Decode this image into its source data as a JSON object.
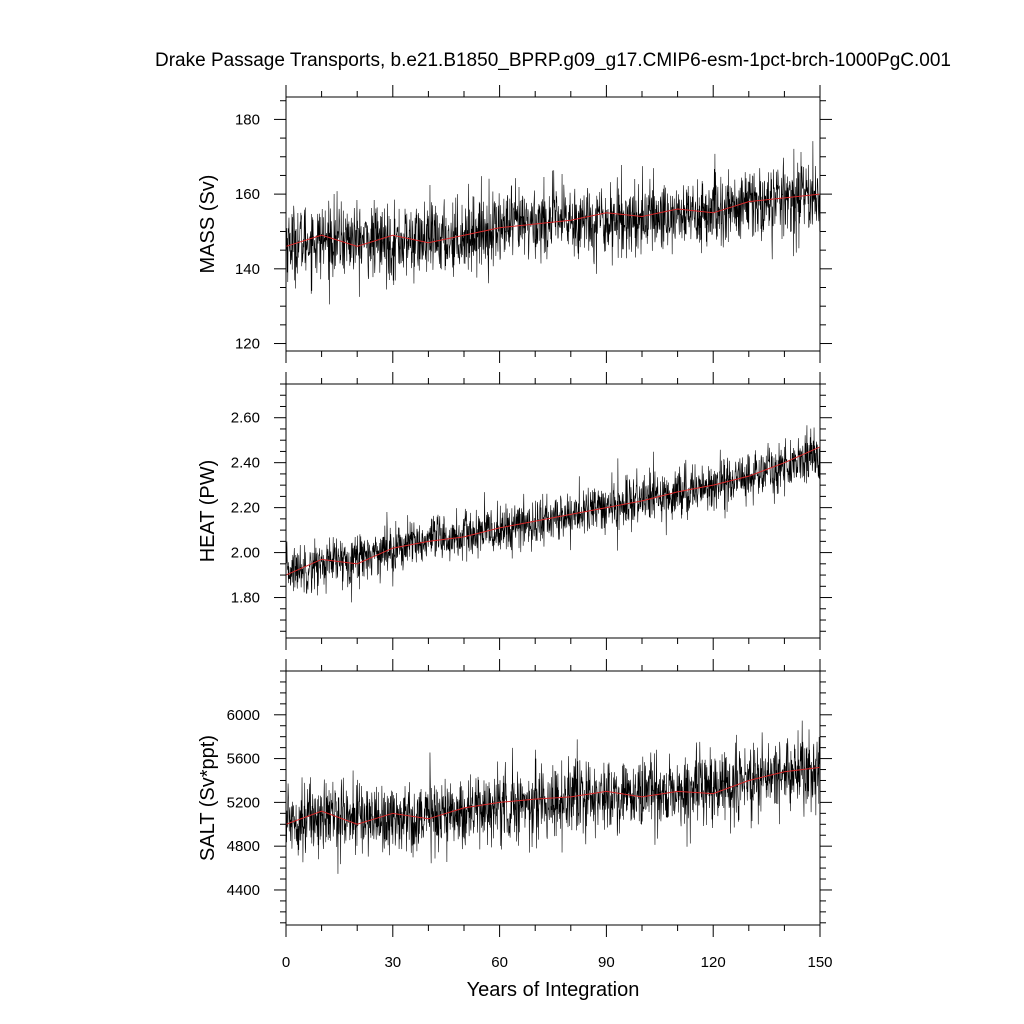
{
  "figure": {
    "title": "Drake Passage Transports, b.e21.B1850_BPRP.g09_g17.CMIP6-esm-1pct-brch-1000PgC.001",
    "xlabel": "Years of Integration"
  },
  "chart_data": [
    {
      "type": "line",
      "ylabel": "MASS (Sv)",
      "xlim": [
        0,
        150
      ],
      "ylim": [
        118,
        186
      ],
      "yticks": [
        120,
        140,
        160,
        180
      ],
      "ytick_labels": [
        "120",
        "140",
        "160",
        "180"
      ],
      "xticks": [
        0,
        30,
        60,
        90,
        120,
        150
      ],
      "colors": {
        "raw": "#000000",
        "smooth": "#d62728"
      },
      "series": [
        {
          "role": "raw",
          "anchors_x": [
            0,
            15,
            30,
            45,
            60,
            75,
            90,
            105,
            120,
            135,
            150
          ],
          "anchors_y": [
            147,
            148,
            147,
            148,
            151,
            153,
            153,
            154,
            155,
            158,
            160
          ],
          "noise": 9,
          "extreme_max": 186,
          "extreme_min": 118
        },
        {
          "role": "smooth",
          "x": [
            0,
            10,
            20,
            30,
            40,
            50,
            60,
            70,
            80,
            90,
            100,
            110,
            120,
            130,
            140,
            150
          ],
          "values": [
            146,
            149,
            146,
            149,
            147,
            149,
            151,
            152,
            153,
            155,
            154,
            156,
            155,
            158,
            159,
            160
          ]
        }
      ]
    },
    {
      "type": "line",
      "ylabel": "HEAT (PW)",
      "xlim": [
        0,
        150
      ],
      "ylim": [
        1.62,
        2.75
      ],
      "yticks": [
        1.8,
        2.0,
        2.2,
        2.4,
        2.6
      ],
      "ytick_labels": [
        "1.80",
        "2.00",
        "2.20",
        "2.40",
        "2.60"
      ],
      "xticks": [
        0,
        30,
        60,
        90,
        120,
        150
      ],
      "colors": {
        "raw": "#000000",
        "smooth": "#d62728"
      },
      "series": [
        {
          "role": "raw",
          "anchors_x": [
            0,
            15,
            30,
            45,
            60,
            75,
            90,
            105,
            120,
            135,
            150
          ],
          "anchors_y": [
            1.92,
            1.96,
            2.02,
            2.06,
            2.1,
            2.15,
            2.2,
            2.25,
            2.3,
            2.36,
            2.44
          ],
          "noise": 0.1,
          "extreme_max": 2.75,
          "extreme_min": 1.62
        },
        {
          "role": "smooth",
          "x": [
            0,
            10,
            20,
            30,
            40,
            50,
            60,
            70,
            80,
            90,
            100,
            110,
            120,
            130,
            140,
            150
          ],
          "values": [
            1.9,
            1.97,
            1.95,
            2.02,
            2.05,
            2.07,
            2.11,
            2.14,
            2.17,
            2.2,
            2.23,
            2.27,
            2.3,
            2.34,
            2.4,
            2.47
          ]
        }
      ]
    },
    {
      "type": "line",
      "ylabel": "SALT (Sv*ppt)",
      "xlim": [
        0,
        150
      ],
      "ylim": [
        4080,
        6400
      ],
      "yticks": [
        4400,
        4800,
        5200,
        5600,
        6000
      ],
      "ytick_labels": [
        "4400",
        "4800",
        "5200",
        "5600",
        "6000"
      ],
      "xticks": [
        0,
        30,
        60,
        90,
        120,
        150
      ],
      "xtick_labels": [
        "0",
        "30",
        "60",
        "90",
        "120",
        "150"
      ],
      "colors": {
        "raw": "#000000",
        "smooth": "#d62728"
      },
      "series": [
        {
          "role": "raw",
          "anchors_x": [
            0,
            15,
            30,
            45,
            60,
            75,
            90,
            105,
            120,
            135,
            150
          ],
          "anchors_y": [
            5050,
            5080,
            5050,
            5100,
            5160,
            5220,
            5250,
            5280,
            5300,
            5450,
            5500
          ],
          "noise": 300,
          "extreme_max": 6400,
          "extreme_min": 4080
        },
        {
          "role": "smooth",
          "x": [
            0,
            10,
            20,
            30,
            40,
            50,
            60,
            70,
            80,
            90,
            100,
            110,
            120,
            130,
            140,
            150
          ],
          "values": [
            5000,
            5120,
            5000,
            5100,
            5050,
            5150,
            5200,
            5230,
            5250,
            5300,
            5250,
            5300,
            5280,
            5400,
            5480,
            5520
          ]
        }
      ]
    }
  ]
}
